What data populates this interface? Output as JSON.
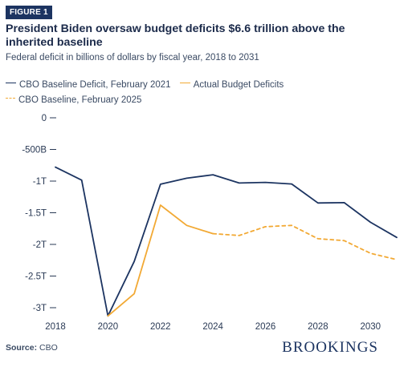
{
  "figure_label": "FIGURE 1",
  "title": "President Biden oversaw budget deficits $6.6 trillion above the inherited baseline",
  "subtitle": "Federal deficit in billions of dollars by fiscal year, 2018 to 2031",
  "source_label": "Source:",
  "source_value": "CBO",
  "brand": "BROOKINGS",
  "colors": {
    "navy": "#1c3461",
    "orange": "#f2a934"
  },
  "chart_data": {
    "type": "line",
    "title": "President Biden oversaw budget deficits $6.6 trillion above the inherited baseline",
    "subtitle": "Federal deficit in billions of dollars by fiscal year, 2018 to 2031",
    "xlabel": "",
    "ylabel": "",
    "xlim": [
      2018,
      2031
    ],
    "ylim": [
      -3200,
      0
    ],
    "x_ticks": [
      2018,
      2020,
      2022,
      2024,
      2026,
      2028,
      2030
    ],
    "y_ticks": [
      0,
      -500,
      -1000,
      -1500,
      -2000,
      -2500,
      -3000
    ],
    "y_tick_labels": [
      "0",
      "-500B",
      "-1T",
      "-1.5T",
      "-2T",
      "-2.5T",
      "-3T"
    ],
    "grid": false,
    "legend_position": "top",
    "series": [
      {
        "name": "CBO Baseline Deficit, February 2021",
        "color": "#1c3461",
        "style": "solid",
        "x": [
          2018,
          2019,
          2020,
          2021,
          2022,
          2023,
          2024,
          2025,
          2026,
          2027,
          2028,
          2029,
          2030,
          2031
        ],
        "values": [
          -780,
          -985,
          -3130,
          -2270,
          -1050,
          -955,
          -900,
          -1030,
          -1020,
          -1045,
          -1345,
          -1340,
          -1650,
          -1890
        ]
      },
      {
        "name": "Actual Budget Deficits",
        "color": "#f2a934",
        "style": "solid",
        "x": [
          2020,
          2021,
          2022,
          2023,
          2024
        ],
        "values": [
          -3130,
          -2780,
          -1380,
          -1700,
          -1830
        ]
      },
      {
        "name": "CBO Baseline, February 2025",
        "color": "#f2a934",
        "style": "dashed",
        "x": [
          2024,
          2025,
          2026,
          2027,
          2028,
          2029,
          2030,
          2031
        ],
        "values": [
          -1830,
          -1860,
          -1720,
          -1700,
          -1910,
          -1940,
          -2140,
          -2240
        ]
      }
    ]
  }
}
